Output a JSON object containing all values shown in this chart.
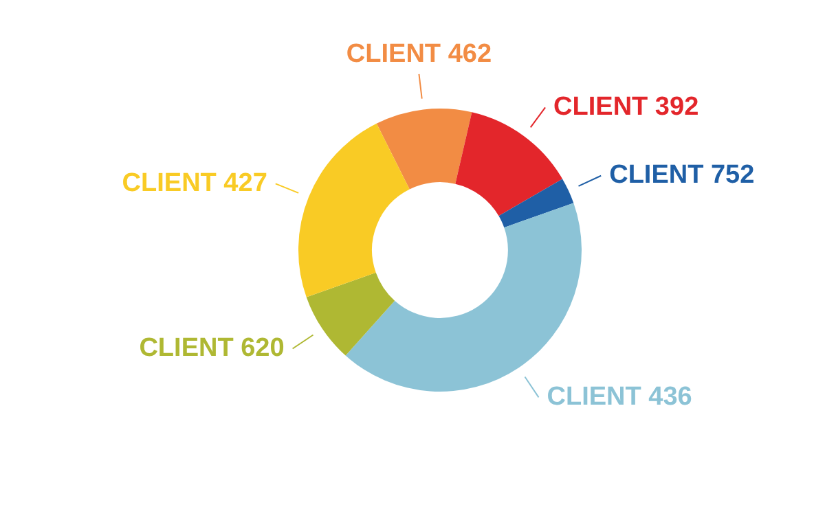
{
  "chart_data": {
    "type": "donut",
    "categories": [
      "CLIENT 462",
      "CLIENT 392",
      "CLIENT 752",
      "CLIENT 436",
      "CLIENT 620",
      "CLIENT 427"
    ],
    "values": [
      11,
      13,
      3,
      42,
      8,
      23
    ],
    "colors": [
      "#f28c44",
      "#e3262b",
      "#1f5fa6",
      "#8cc3d6",
      "#afb833",
      "#f9cb25"
    ],
    "legend": false
  }
}
